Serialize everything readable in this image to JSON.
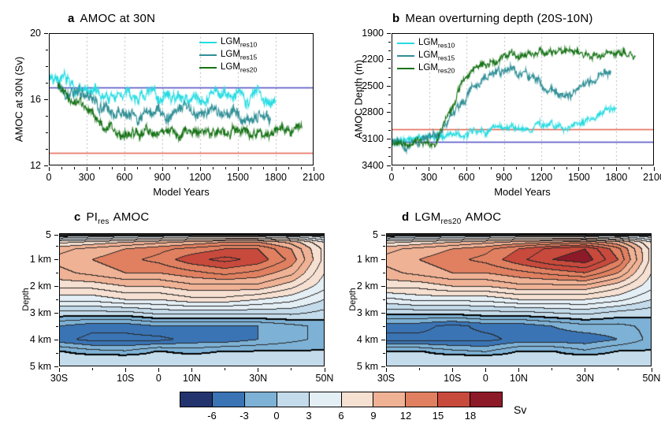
{
  "chart_data": [
    {
      "id": "a",
      "type": "line",
      "letter": "a",
      "title": "AMOC at 30N",
      "xlabel": "Model Years",
      "ylabel": "AMOC at 30N (Sv)",
      "xlim": [
        0,
        2100
      ],
      "ylim": [
        12,
        20
      ],
      "y_reversed": false,
      "xticks": [
        0,
        300,
        600,
        900,
        1200,
        1500,
        1800,
        2100
      ],
      "yticks": [
        12,
        16,
        20
      ],
      "x_minor_step": 100,
      "y_minor_step": 1,
      "grid": "vertical-dotted",
      "reflines": [
        {
          "value": 16.7,
          "color": "#4a4ac0"
        },
        {
          "value": 12.75,
          "color": "#e2604e"
        }
      ],
      "legend": [
        {
          "base": "LGM",
          "sub": "res10"
        },
        {
          "base": "LGM",
          "sub": "res15"
        },
        {
          "base": "LGM",
          "sub": "res20"
        }
      ],
      "series": [
        {
          "name": "LGM res10",
          "color": "#25dce2",
          "seed": 7,
          "noise": 0.55,
          "anchors": [
            [
              0,
              17.3
            ],
            [
              60,
              17.6
            ],
            [
              150,
              16.9
            ],
            [
              300,
              16.4
            ],
            [
              500,
              16.1
            ],
            [
              700,
              16.3
            ],
            [
              900,
              16.2
            ],
            [
              1100,
              16.0
            ],
            [
              1300,
              16.3
            ],
            [
              1500,
              16.1
            ],
            [
              1650,
              16.3
            ],
            [
              1800,
              16.0
            ]
          ]
        },
        {
          "name": "LGM res15",
          "color": "#2f8f96",
          "seed": 13,
          "noise": 0.5,
          "anchors": [
            [
              70,
              17.1
            ],
            [
              200,
              16.6
            ],
            [
              350,
              15.8
            ],
            [
              500,
              15.2
            ],
            [
              650,
              15.0
            ],
            [
              800,
              15.2
            ],
            [
              950,
              15.0
            ],
            [
              1100,
              15.3
            ],
            [
              1250,
              15.0
            ],
            [
              1400,
              15.2
            ],
            [
              1550,
              14.9
            ],
            [
              1700,
              15.1
            ],
            [
              1760,
              14.8
            ]
          ]
        },
        {
          "name": "LGM res20",
          "color": "#177317",
          "seed": 21,
          "noise": 0.45,
          "anchors": [
            [
              70,
              16.9
            ],
            [
              250,
              15.6
            ],
            [
              400,
              14.6
            ],
            [
              550,
              14.1
            ],
            [
              700,
              13.9
            ],
            [
              850,
              14.1
            ],
            [
              1000,
              13.9
            ],
            [
              1150,
              14.0
            ],
            [
              1300,
              13.8
            ],
            [
              1450,
              14.0
            ],
            [
              1600,
              13.9
            ],
            [
              1750,
              14.0
            ],
            [
              1900,
              14.1
            ],
            [
              2010,
              14.2
            ]
          ]
        }
      ]
    },
    {
      "id": "b",
      "type": "line",
      "letter": "b",
      "title": "Mean overturning depth (20S-10N)",
      "xlabel": "Model Years",
      "ylabel": "AMOC Depth (m)",
      "xlim": [
        0,
        2100
      ],
      "ylim": [
        1900,
        3400
      ],
      "y_reversed": true,
      "xticks": [
        0,
        300,
        600,
        900,
        1200,
        1500,
        1800,
        2100
      ],
      "yticks": [
        1900,
        2200,
        2500,
        2800,
        3100,
        3400
      ],
      "x_minor_step": 100,
      "y_minor_step": 100,
      "grid": "vertical-dotted",
      "reflines": [
        {
          "value": 2990,
          "color": "#e2604e"
        },
        {
          "value": 3130,
          "color": "#4a4ac0"
        }
      ],
      "legend": [
        {
          "base": "LGM",
          "sub": "res10"
        },
        {
          "base": "LGM",
          "sub": "res15"
        },
        {
          "base": "LGM",
          "sub": "res20"
        }
      ],
      "series": [
        {
          "name": "LGM res10",
          "color": "#25dce2",
          "seed": 5,
          "noise": 55,
          "anchors": [
            [
              0,
              3120
            ],
            [
              200,
              3090
            ],
            [
              400,
              3070
            ],
            [
              600,
              3040
            ],
            [
              800,
              2990
            ],
            [
              1000,
              3010
            ],
            [
              1200,
              2960
            ],
            [
              1400,
              2990
            ],
            [
              1550,
              2890
            ],
            [
              1700,
              2800
            ],
            [
              1800,
              2740
            ]
          ]
        },
        {
          "name": "LGM res15",
          "color": "#2f8f96",
          "seed": 9,
          "noise": 65,
          "anchors": [
            [
              0,
              3140
            ],
            [
              250,
              3120
            ],
            [
              400,
              3000
            ],
            [
              520,
              2750
            ],
            [
              650,
              2500
            ],
            [
              800,
              2350
            ],
            [
              950,
              2300
            ],
            [
              1100,
              2400
            ],
            [
              1250,
              2550
            ],
            [
              1400,
              2600
            ],
            [
              1550,
              2500
            ],
            [
              1650,
              2400
            ],
            [
              1760,
              2330
            ]
          ]
        },
        {
          "name": "LGM res20",
          "color": "#177317",
          "seed": 17,
          "noise": 55,
          "anchors": [
            [
              0,
              3170
            ],
            [
              350,
              3150
            ],
            [
              420,
              2950
            ],
            [
              500,
              2650
            ],
            [
              580,
              2400
            ],
            [
              680,
              2250
            ],
            [
              800,
              2180
            ],
            [
              1000,
              2130
            ],
            [
              1200,
              2160
            ],
            [
              1400,
              2130
            ],
            [
              1600,
              2180
            ],
            [
              1800,
              2120
            ],
            [
              1950,
              2170
            ]
          ]
        }
      ]
    },
    {
      "id": "c",
      "type": "heatmap",
      "letter": "c",
      "title_base": "PI",
      "title_sub": "res",
      "title_rest": "AMOC",
      "ylabel": "Depth",
      "lat_ticks": [
        {
          "value": -30,
          "label": "30S"
        },
        {
          "value": -10,
          "label": "10S"
        },
        {
          "value": 0,
          "label": "0"
        },
        {
          "value": 10,
          "label": "10N"
        },
        {
          "value": 30,
          "label": "30N"
        },
        {
          "value": 50,
          "label": "50N"
        }
      ],
      "lat_minor": [
        -20,
        20,
        40
      ],
      "depth_ticks": [
        {
          "value": 0.08,
          "label": "5"
        },
        {
          "value": 1,
          "label": "1 km"
        },
        {
          "value": 2,
          "label": "2 km"
        },
        {
          "value": 3,
          "label": "3 km"
        },
        {
          "value": 4,
          "label": "4 km"
        },
        {
          "value": 5,
          "label": "5 km"
        }
      ],
      "depth_minor": [
        0.5,
        1.5,
        2.5,
        3.5,
        4.5
      ],
      "lats": [
        -30,
        -20,
        -10,
        0,
        10,
        20,
        30,
        40,
        50
      ],
      "depths_km": [
        0,
        0.12,
        0.35,
        0.6,
        1,
        1.5,
        2,
        2.5,
        3,
        3.5,
        4,
        4.45,
        4.65,
        5
      ],
      "values": [
        [
          -8,
          -8,
          -8,
          -8,
          -8,
          -8,
          -8,
          -8,
          -8
        ],
        [
          1,
          2,
          3,
          4,
          5,
          5,
          5,
          4,
          2
        ],
        [
          7,
          8,
          9,
          10,
          11,
          12,
          12,
          10,
          6
        ],
        [
          10,
          11,
          12,
          13,
          14,
          15,
          15,
          12,
          7
        ],
        [
          11,
          12,
          13,
          14,
          16,
          17,
          16,
          13,
          7
        ],
        [
          10,
          11,
          12,
          12,
          13,
          14,
          13,
          11,
          6
        ],
        [
          8,
          8,
          9,
          9,
          10,
          10,
          10,
          8,
          5
        ],
        [
          5,
          5,
          6,
          6,
          7,
          7,
          6,
          5,
          3
        ],
        [
          1,
          1,
          1,
          2,
          2,
          2,
          2,
          2,
          1
        ],
        [
          -3,
          -4,
          -4,
          -3,
          -3,
          -3,
          -3,
          -2,
          -1
        ],
        [
          -4,
          -5,
          -5,
          -5,
          -4,
          -4,
          -3,
          -2,
          -1
        ],
        [
          0.2,
          -0.9,
          -1.3,
          0.2,
          -0.6,
          0.2,
          0.2,
          0.2,
          0.2
        ],
        [
          0.8,
          0.8,
          0.8,
          0.8,
          0.8,
          0.8,
          0.8,
          0.8,
          0.8
        ],
        [
          0.8,
          0.8,
          0.8,
          0.8,
          0.8,
          0.8,
          0.8,
          0.8,
          0.8
        ]
      ]
    },
    {
      "id": "d",
      "type": "heatmap",
      "letter": "d",
      "title_base": "LGM",
      "title_sub": "res20",
      "title_rest": "AMOC",
      "ylabel": "Depth",
      "lat_ticks": [
        {
          "value": -30,
          "label": "30S"
        },
        {
          "value": -10,
          "label": "10S"
        },
        {
          "value": 0,
          "label": "0"
        },
        {
          "value": 10,
          "label": "10N"
        },
        {
          "value": 30,
          "label": "30N"
        },
        {
          "value": 50,
          "label": "50N"
        }
      ],
      "lat_minor": [
        -20,
        20,
        40
      ],
      "depth_ticks": [
        {
          "value": 0.08,
          "label": "5"
        },
        {
          "value": 1,
          "label": "1 km"
        },
        {
          "value": 2,
          "label": "2 km"
        },
        {
          "value": 3,
          "label": "3 km"
        },
        {
          "value": 4,
          "label": "4 km"
        },
        {
          "value": 5,
          "label": "5 km"
        }
      ],
      "depth_minor": [
        0.5,
        1.5,
        2.5,
        3.5,
        4.5
      ],
      "lats": [
        -30,
        -20,
        -10,
        0,
        10,
        20,
        30,
        40,
        50
      ],
      "depths_km": [
        0,
        0.12,
        0.35,
        0.6,
        1,
        1.5,
        2,
        2.5,
        3,
        3.5,
        4,
        4.45,
        4.65,
        5
      ],
      "values": [
        [
          -8,
          -8,
          -8,
          -8,
          -8,
          -8,
          -8,
          -8,
          -8
        ],
        [
          1,
          2,
          3,
          4,
          5,
          5,
          5,
          4,
          2
        ],
        [
          7,
          8,
          9,
          10,
          11,
          12,
          13,
          11,
          6
        ],
        [
          10,
          11,
          12,
          13,
          15,
          17,
          18,
          14,
          7
        ],
        [
          11,
          12,
          13,
          14,
          16,
          18,
          19,
          15,
          7
        ],
        [
          10,
          11,
          12,
          12,
          13,
          14,
          15,
          12,
          6
        ],
        [
          8,
          8,
          9,
          9,
          10,
          10,
          10,
          8,
          5
        ],
        [
          4,
          5,
          5,
          5,
          6,
          6,
          6,
          5,
          3
        ],
        [
          0.5,
          0.5,
          0.5,
          1,
          1,
          1.5,
          2,
          1,
          0.5
        ],
        [
          -4,
          -4,
          -5,
          -4,
          -4,
          -3,
          -2,
          -2,
          -1
        ],
        [
          -5,
          -5,
          -5,
          -5,
          -4,
          -4,
          -4,
          -3,
          -1
        ],
        [
          0.2,
          0.2,
          -1,
          -1.6,
          0.2,
          0.2,
          -1.2,
          0.2,
          0.2
        ],
        [
          0.8,
          0.8,
          0.8,
          0.8,
          0.8,
          0.8,
          0.8,
          0.8,
          0.8
        ],
        [
          0.8,
          0.8,
          0.8,
          0.8,
          0.8,
          0.8,
          0.8,
          0.8,
          0.8
        ]
      ]
    },
    {
      "id": "colorbar",
      "type": "colorbar",
      "ticks": [
        -6,
        -3,
        0,
        3,
        6,
        9,
        12,
        15,
        18
      ],
      "label": "Sv",
      "contour_interval": 1.5,
      "colors": [
        "#23336e",
        "#3a74b4",
        "#7db1d5",
        "#c3dbea",
        "#e4eef5",
        "#f6e0d2",
        "#f0b295",
        "#e08060",
        "#c84a3c",
        "#8c1a28"
      ]
    }
  ]
}
